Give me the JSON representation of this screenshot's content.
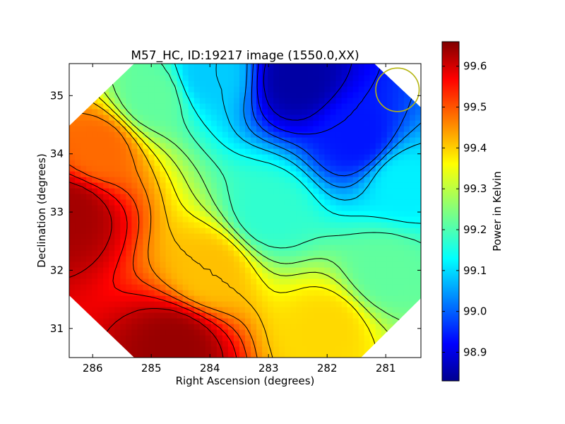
{
  "chart_data": {
    "type": "heatmap",
    "title": "M57_HC, ID:19217 image (1550.0,XX)",
    "xlabel": "Right Ascension (degrees)",
    "ylabel": "Declination (degrees)",
    "xlim": [
      286.4,
      280.4
    ],
    "ylim": [
      30.5,
      35.55
    ],
    "x_ticks": [
      286,
      285,
      284,
      283,
      282,
      281
    ],
    "y_ticks": [
      31,
      32,
      33,
      34,
      35
    ],
    "x_tick_labels": [
      "286",
      "285",
      "284",
      "283",
      "282",
      "281"
    ],
    "y_tick_labels": [
      "31",
      "32",
      "33",
      "34",
      "35"
    ],
    "colormap": "jet",
    "colorbar": {
      "label": "Power in Kelvin",
      "range": [
        98.83,
        99.66
      ],
      "ticks": [
        98.9,
        99.0,
        99.1,
        99.2,
        99.3,
        99.4,
        99.5,
        99.6
      ],
      "tick_labels": [
        "98.9",
        "99.0",
        "99.1",
        "99.2",
        "99.3",
        "99.4",
        "99.5",
        "99.6"
      ]
    },
    "field_samples": [
      {
        "ra": 286.4,
        "dec": 33.0,
        "value": 99.63
      },
      {
        "ra": 285.9,
        "dec": 34.1,
        "value": 99.47
      },
      {
        "ra": 285.0,
        "dec": 35.0,
        "value": 99.22
      },
      {
        "ra": 284.0,
        "dec": 35.4,
        "value": 99.1
      },
      {
        "ra": 282.5,
        "dec": 35.3,
        "value": 98.86
      },
      {
        "ra": 281.5,
        "dec": 34.3,
        "value": 98.95
      },
      {
        "ra": 280.7,
        "dec": 33.5,
        "value": 99.13
      },
      {
        "ra": 281.0,
        "dec": 32.0,
        "value": 99.22
      },
      {
        "ra": 282.0,
        "dec": 31.0,
        "value": 99.38
      },
      {
        "ra": 284.6,
        "dec": 30.7,
        "value": 99.64
      },
      {
        "ra": 284.0,
        "dec": 32.0,
        "value": 99.4
      },
      {
        "ra": 283.0,
        "dec": 33.0,
        "value": 99.18
      }
    ],
    "beam_marker": {
      "ra": 280.8,
      "dec": 35.1,
      "radius_deg": 0.37,
      "color": "#b5b512"
    },
    "grid": false,
    "legend": "colorbar-right"
  }
}
